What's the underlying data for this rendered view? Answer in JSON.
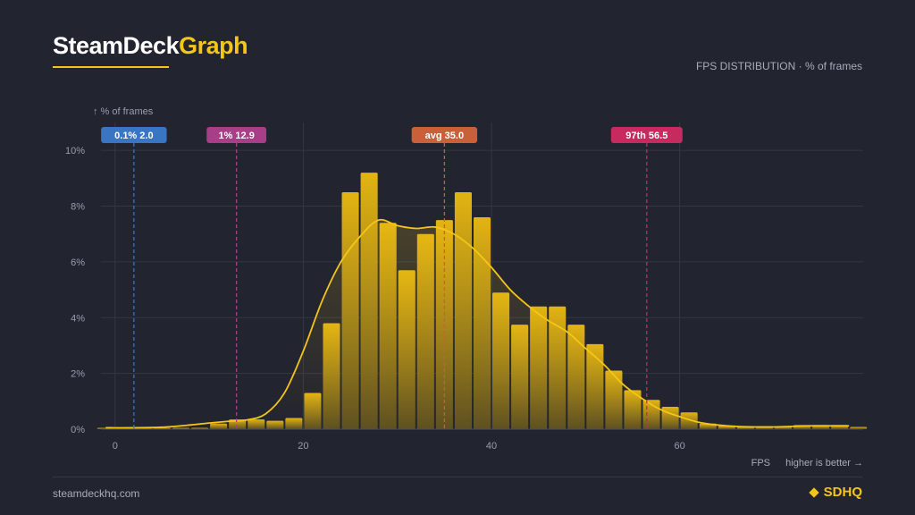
{
  "header": {
    "brand_part1": "SteamDeck",
    "brand_part2": "Graph",
    "subtitle": "FPS DISTRIBUTION · % of frames"
  },
  "footer": {
    "site": "steamdeckhq.com",
    "logo_text": "SDHQ",
    "logo_icon": "diamond-icon"
  },
  "colors": {
    "background": "#22242f",
    "accent": "#f5c518",
    "grid": "#353846",
    "text_muted": "#a9adba"
  },
  "chart_data": {
    "type": "bar",
    "title": "FPS DISTRIBUTION · % of frames",
    "ylabel": "↑ % of frames",
    "xlabel": "FPS",
    "xlabel_note": "higher is better →",
    "xlim": [
      -1.5,
      79.5
    ],
    "ylim": [
      0,
      11
    ],
    "x_ticks": [
      0,
      20,
      40,
      60
    ],
    "y_ticks": [
      0,
      2,
      4,
      6,
      8,
      10
    ],
    "y_tick_suffix": "%",
    "grid": true,
    "bin_width": 2,
    "bins": {
      "x": [
        -1,
        1,
        3,
        5,
        7,
        9,
        11,
        13,
        15,
        17,
        19,
        21,
        23,
        25,
        27,
        29,
        31,
        33,
        35,
        37,
        39,
        41,
        43,
        45,
        47,
        49,
        51,
        53,
        55,
        57,
        59,
        61,
        63,
        65,
        67,
        69,
        71,
        73,
        75,
        77,
        79
      ],
      "values": [
        0.05,
        0.05,
        0.05,
        0.05,
        0.05,
        0.05,
        0.2,
        0.35,
        0.35,
        0.3,
        0.4,
        1.3,
        3.8,
        8.5,
        9.2,
        7.4,
        5.7,
        7.0,
        7.5,
        8.5,
        7.6,
        4.9,
        3.75,
        4.4,
        4.4,
        3.75,
        3.05,
        2.1,
        1.4,
        1.05,
        0.8,
        0.6,
        0.2,
        0.12,
        0.08,
        0.1,
        0.1,
        0.15,
        0.15,
        0.15,
        0.08
      ]
    },
    "curve": {
      "x": [
        -1,
        2,
        5,
        8,
        10,
        12,
        14,
        16,
        18,
        20,
        22,
        24,
        26,
        28,
        30,
        32,
        34,
        36,
        38,
        40,
        42,
        44,
        46,
        48,
        50,
        52,
        54,
        56,
        58,
        60,
        62,
        64,
        66,
        68,
        70,
        72,
        74,
        76,
        78
      ],
      "values": [
        0.05,
        0.05,
        0.07,
        0.15,
        0.22,
        0.28,
        0.33,
        0.55,
        1.3,
        2.8,
        4.6,
        6.0,
        6.9,
        7.5,
        7.3,
        7.2,
        7.25,
        7.0,
        6.5,
        5.8,
        5.0,
        4.4,
        3.9,
        3.5,
        2.9,
        2.3,
        1.6,
        1.1,
        0.7,
        0.45,
        0.25,
        0.15,
        0.1,
        0.08,
        0.08,
        0.1,
        0.12,
        0.12,
        0.12
      ]
    },
    "markers": [
      {
        "label": "0.1%",
        "value": "2.0",
        "x": 2.0,
        "color": "#3a75c4"
      },
      {
        "label": "1%",
        "value": "12.9",
        "x": 12.9,
        "color": "#a83e87"
      },
      {
        "label": "avg",
        "value": "35.0",
        "x": 35.0,
        "color": "#c8603a"
      },
      {
        "label": "97th",
        "value": "56.5",
        "x": 56.5,
        "color": "#c72a5e"
      }
    ]
  }
}
